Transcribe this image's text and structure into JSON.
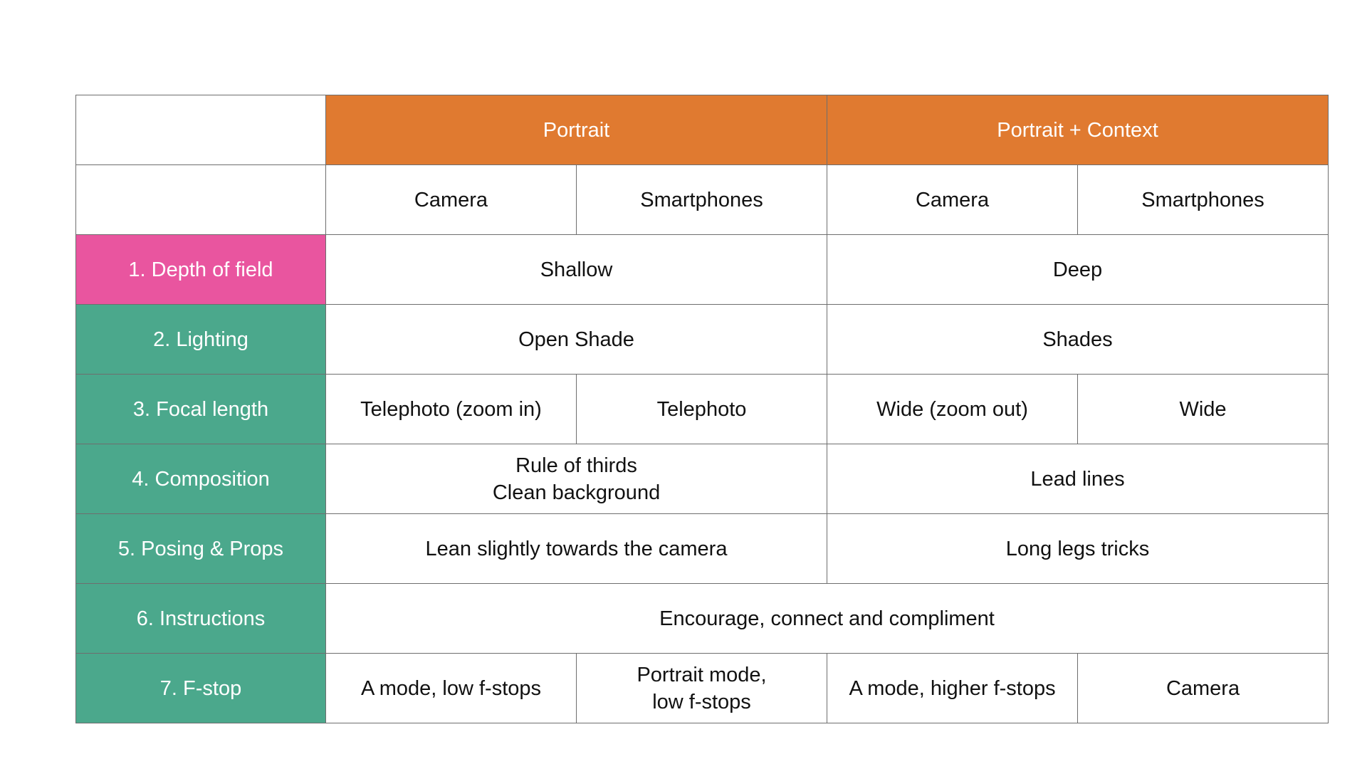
{
  "colors": {
    "header": "#e07a30",
    "depth_of_field": "#e9559f",
    "rows": "#4ba88c"
  },
  "header": {
    "groups": [
      "Portrait",
      "Portrait + Context"
    ],
    "subcols": [
      "Camera",
      "Smartphones",
      "Camera",
      "Smartphones"
    ]
  },
  "rows": [
    {
      "label": "1. Depth of field",
      "portrait": "Shallow",
      "context": "Deep"
    },
    {
      "label": "2. Lighting",
      "portrait": "Open Shade",
      "context": "Shades"
    },
    {
      "label": "3. Focal length",
      "cells": [
        "Telephoto (zoom in)",
        "Telephoto",
        "Wide (zoom out)",
        "Wide"
      ]
    },
    {
      "label": "4. Composition",
      "portrait_lines": [
        "Rule of thirds",
        "Clean background"
      ],
      "context": "Lead lines"
    },
    {
      "label": "5. Posing & Props",
      "portrait": "Lean slightly towards the camera",
      "context": "Long legs tricks"
    },
    {
      "label": "6. Instructions",
      "all": "Encourage, connect and compliment"
    },
    {
      "label": "7. F-stop",
      "cells": [
        "A mode, low f-stops",
        "Portrait mode, low f-stops",
        "A mode, higher f-stops",
        "Camera"
      ],
      "cell2_lines": [
        "Portrait mode,",
        "low f-stops"
      ]
    }
  ]
}
